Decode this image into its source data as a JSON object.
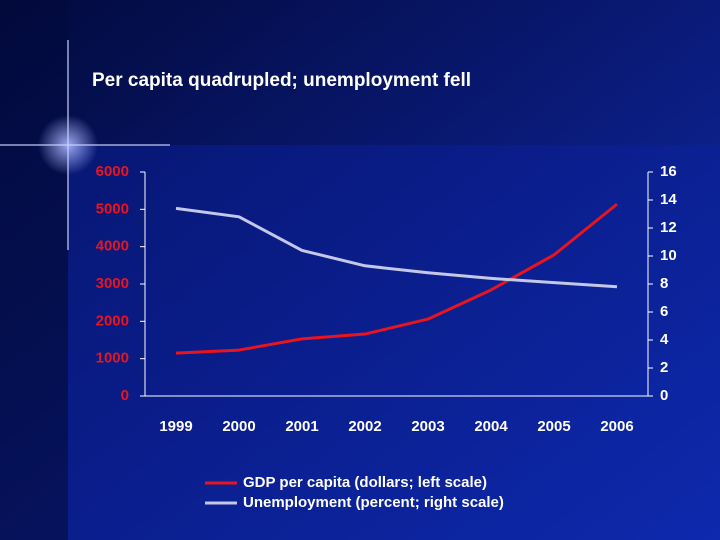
{
  "chart_data": {
    "type": "line",
    "title": "Per capita quadrupled; unemployment fell",
    "categories": [
      "1999",
      "2000",
      "2001",
      "2002",
      "2003",
      "2004",
      "2005",
      "2006"
    ],
    "series": [
      {
        "name": "GDP per capita (dollars; left scale)",
        "color": "#e8141e",
        "values": [
          1150,
          1230,
          1530,
          1660,
          2060,
          2840,
          3780,
          5140
        ]
      },
      {
        "name": "Unemployment (percent; right scale)",
        "color": "#c4c8e6",
        "axis": "y2",
        "values": [
          13.4,
          12.8,
          10.4,
          9.3,
          8.8,
          8.4,
          8.1,
          7.8
        ]
      }
    ],
    "ylim": [
      0,
      6000
    ],
    "yticks": [
      0,
      1000,
      2000,
      3000,
      4000,
      5000,
      6000
    ],
    "ytick_color": "#e8141e",
    "y2lim": [
      0,
      16
    ],
    "y2ticks": [
      0,
      2,
      4,
      6,
      8,
      10,
      12,
      14,
      16
    ],
    "y2tick_color": "#ffffff",
    "grid": false
  }
}
